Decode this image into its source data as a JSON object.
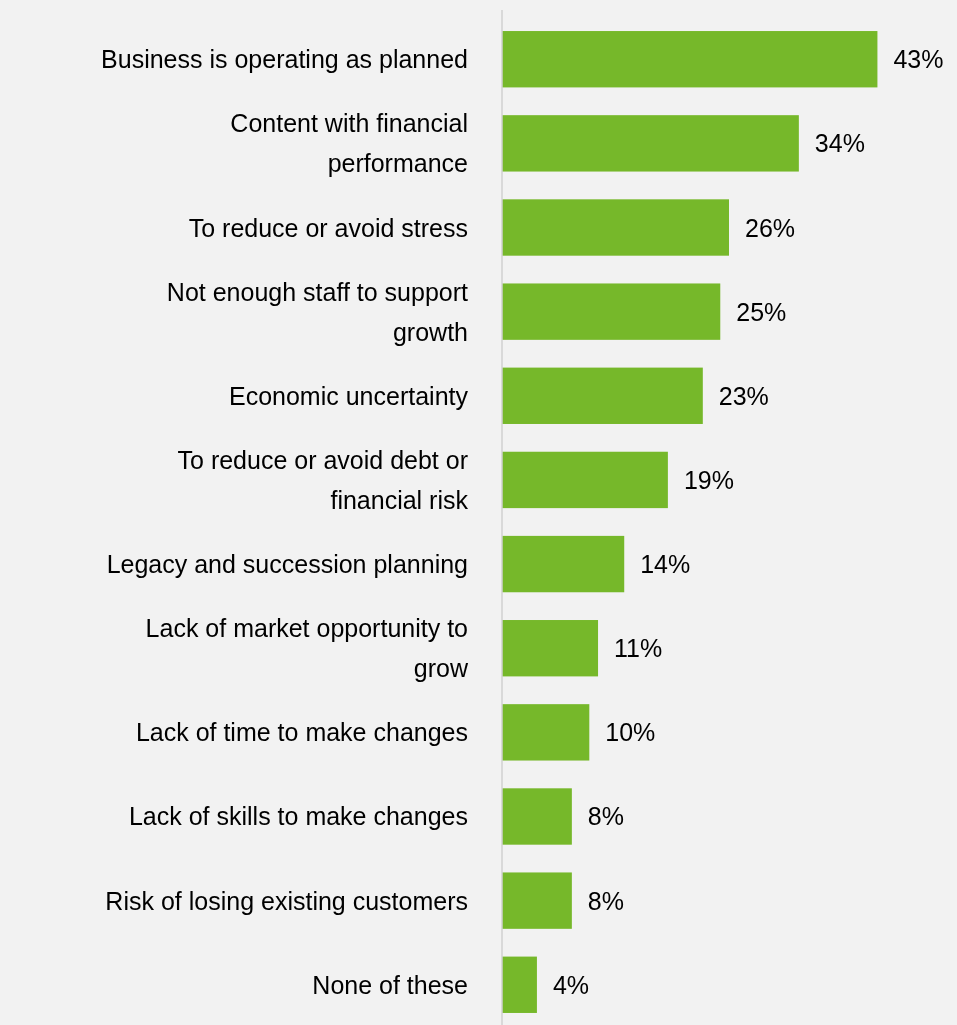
{
  "chart_data": {
    "type": "bar",
    "orientation": "horizontal",
    "color": "#76b82a",
    "categories": [
      "Business is operating as planned",
      "Content with financial performance",
      "To reduce or avoid stress",
      "Not enough staff to support growth",
      "Economic uncertainty",
      "To reduce or avoid debt or financial risk",
      "Legacy and succession planning",
      "Lack of market opportunity to grow",
      "Lack of time to make changes",
      "Lack of skills to make changes",
      "Risk of losing existing customers",
      "None of these"
    ],
    "values": [
      43,
      34,
      26,
      25,
      23,
      19,
      14,
      11,
      10,
      8,
      8,
      4
    ],
    "value_labels": [
      "43%",
      "34%",
      "26%",
      "25%",
      "23%",
      "19%",
      "14%",
      "11%",
      "10%",
      "8%",
      "8%",
      "4%"
    ],
    "xlim": [
      0,
      52
    ],
    "tick_labels": "y"
  }
}
